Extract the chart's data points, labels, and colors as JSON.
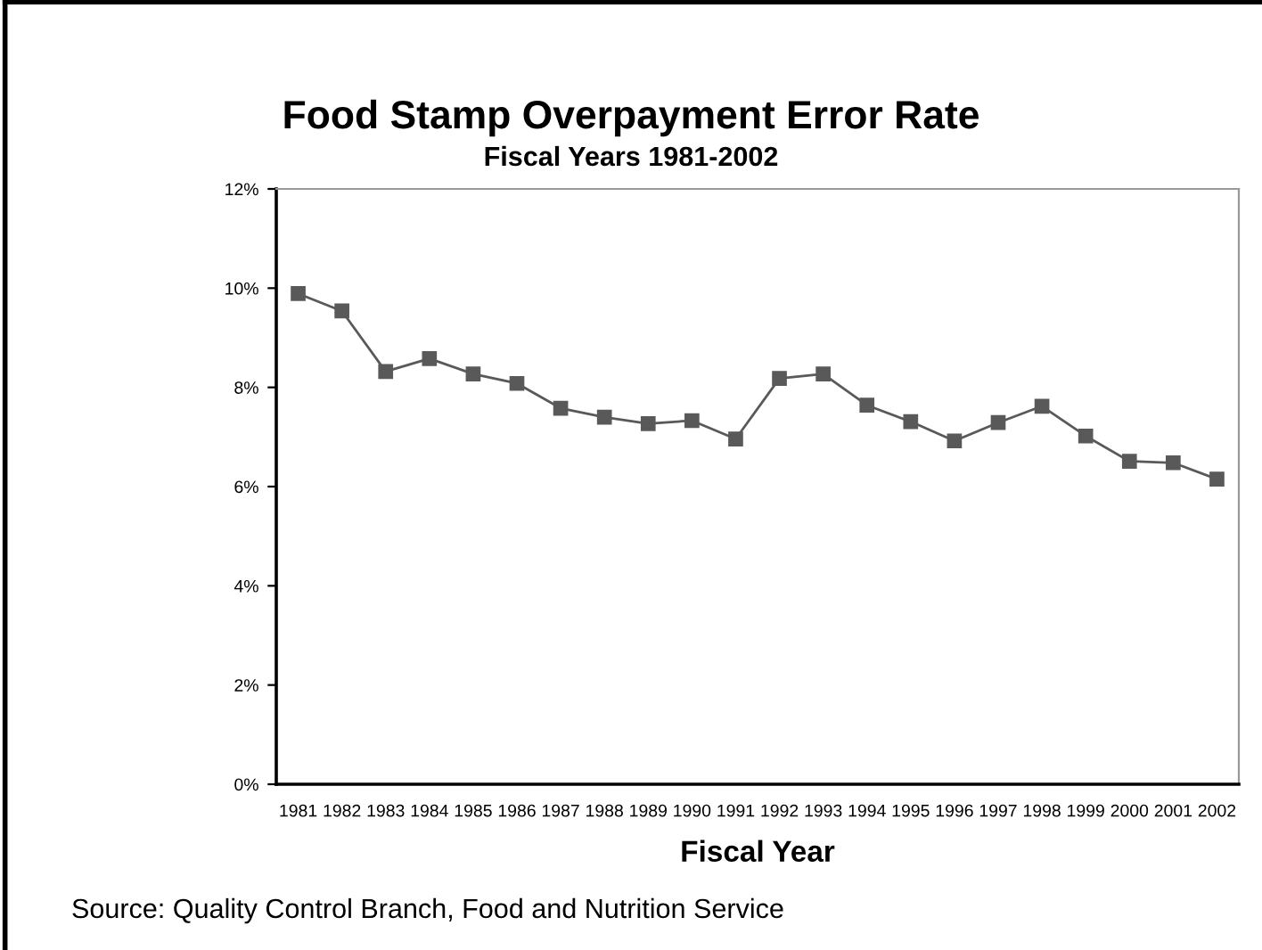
{
  "chart_data": {
    "type": "line",
    "title": "Food Stamp Overpayment Error Rate",
    "subtitle": "Fiscal Years 1981-2002",
    "xlabel": "Fiscal Year",
    "annotations": [
      "Source: Quality Control Branch, Food and Nutrition Service"
    ],
    "categories": [
      "1981",
      "1982",
      "1983",
      "1984",
      "1985",
      "1986",
      "1987",
      "1988",
      "1989",
      "1990",
      "1991",
      "1992",
      "1993",
      "1994",
      "1995",
      "1996",
      "1997",
      "1998",
      "1999",
      "2000",
      "2001",
      "2002"
    ],
    "series": [
      {
        "color": "#595959",
        "values": [
          9.89,
          9.54,
          8.32,
          8.58,
          8.27,
          8.08,
          7.58,
          7.4,
          7.27,
          7.33,
          6.96,
          8.18,
          8.27,
          7.64,
          7.31,
          6.92,
          7.29,
          7.62,
          7.02,
          6.51,
          6.48,
          6.15
        ]
      }
    ],
    "ylim": [
      0,
      12
    ],
    "yticks": [
      {
        "value": 0,
        "label": "0%"
      },
      {
        "value": 2,
        "label": "2%"
      },
      {
        "value": 4,
        "label": "4%"
      },
      {
        "value": 6,
        "label": "6%"
      },
      {
        "value": 8,
        "label": "8%"
      },
      {
        "value": 10,
        "label": "10%"
      },
      {
        "value": 12,
        "label": "12%"
      }
    ],
    "marker": "square",
    "line_style": "solid",
    "grid": false,
    "legend": false
  }
}
